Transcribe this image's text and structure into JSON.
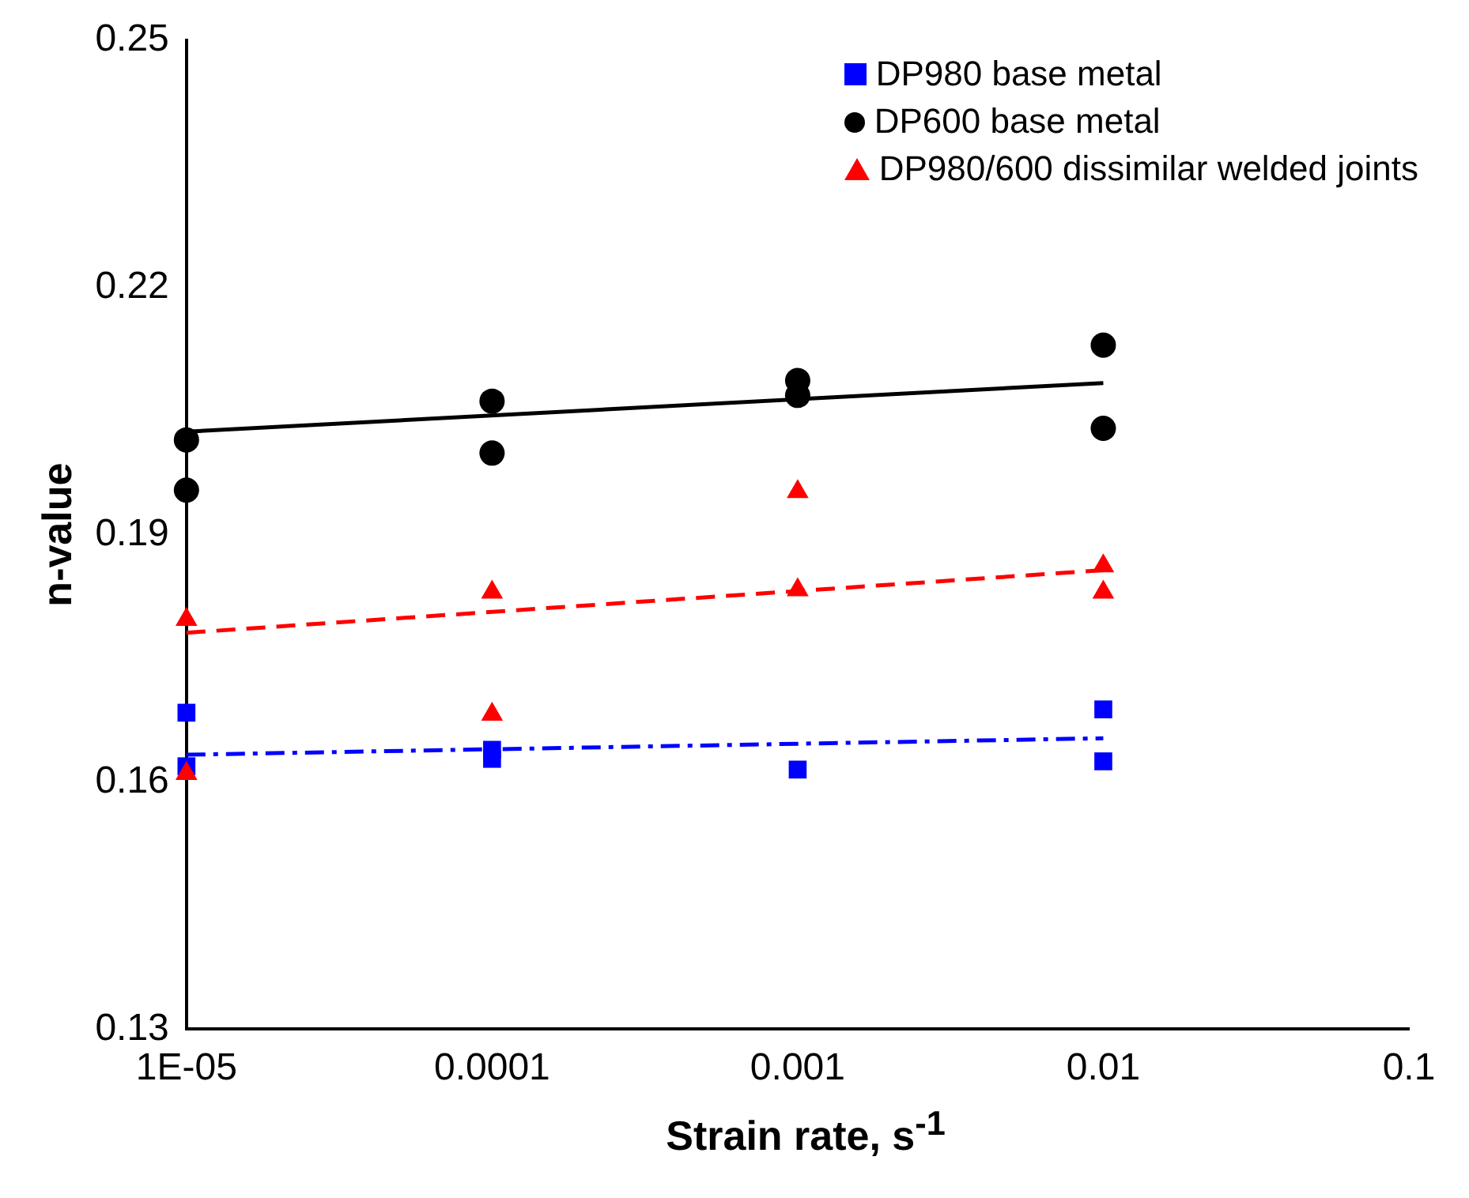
{
  "chart_data": {
    "type": "scatter",
    "xlabel": "Strain rate, s$^{-1}$",
    "ylabel": "n-value",
    "log": "x",
    "xlim": [
      1e-05,
      0.1
    ],
    "xticks": [
      {
        "value": 1e-05,
        "label": "1E-05"
      },
      0.0001,
      0.001,
      0.01,
      0.1
    ],
    "ylim": [
      0.13,
      0.25
    ],
    "yticks": [
      0.13,
      0.16,
      0.19,
      0.22,
      0.25
    ],
    "grid": false,
    "legend": "top right",
    "series": [
      {
        "name": "DP980 base metal",
        "color": "#0000ff",
        "marker": "square",
        "x": [
          1e-05,
          1e-05,
          0.0001,
          0.0001,
          0.001,
          0.01,
          0.01
        ],
        "values": [
          0.1684,
          0.1619,
          0.1639,
          0.1628,
          0.1615,
          0.1688,
          0.1625
        ]
      },
      {
        "name": "DP600 base metal",
        "color": "#000000",
        "marker": "circle",
        "x": [
          1e-05,
          1e-05,
          0.0001,
          0.0001,
          0.001,
          0.001,
          0.01,
          0.01
        ],
        "values": [
          0.2015,
          0.1954,
          0.2062,
          0.1999,
          0.2087,
          0.2069,
          0.213,
          0.2029
        ]
      },
      {
        "name": "DP980/600 dissimilar welded joints",
        "color": "#ff0000",
        "marker": "triangle",
        "x": [
          1e-05,
          1e-05,
          0.0001,
          0.0001,
          0.001,
          0.001,
          0.01,
          0.01
        ],
        "values": [
          0.1797,
          0.161,
          0.183,
          0.1682,
          0.1952,
          0.1833,
          0.1862,
          0.183
        ]
      },
      {
        "type": "line",
        "color": "#0000ff",
        "marker": "none",
        "line_style": "dotted",
        "x": [
          1e-05,
          0.01
        ],
        "values": [
          0.1633,
          0.1653
        ]
      },
      {
        "type": "line",
        "color": "#000000",
        "marker": "none",
        "line_style": "solid",
        "x": [
          1e-05,
          0.01
        ],
        "values": [
          0.2025,
          0.2084
        ]
      },
      {
        "type": "line",
        "color": "#ff0000",
        "marker": "none",
        "line_style": "dashed",
        "x": [
          1e-05,
          0.01
        ],
        "values": [
          0.1781,
          0.1857
        ]
      }
    ]
  }
}
